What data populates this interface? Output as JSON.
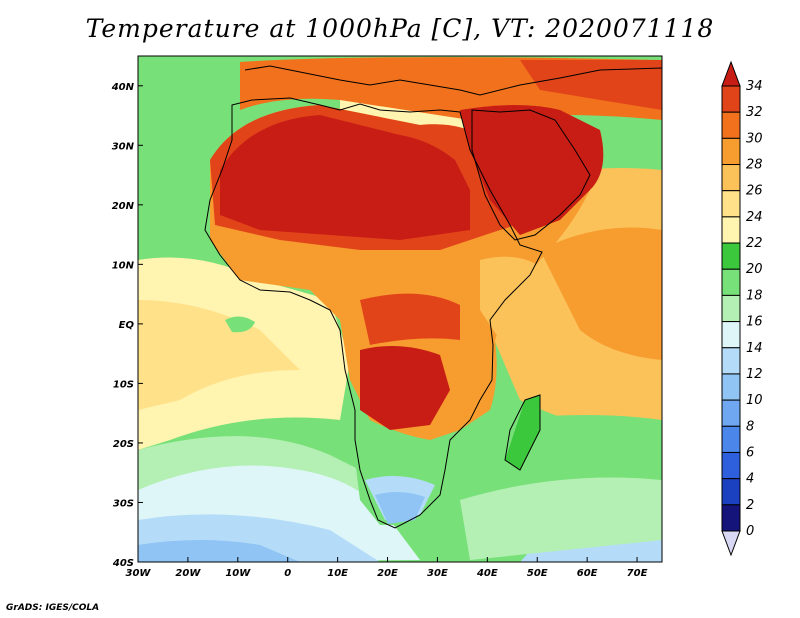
{
  "title": "Temperature at 1000hPa [C], VT: 2020071118",
  "credit": "GrADS: IGES/COLA",
  "map": {
    "lon_range": [
      -30,
      75
    ],
    "lat_range": [
      -40,
      45
    ],
    "lon_ticks": [
      {
        "value": -30,
        "label": "30W"
      },
      {
        "value": -20,
        "label": "20W"
      },
      {
        "value": -10,
        "label": "10W"
      },
      {
        "value": 0,
        "label": "0"
      },
      {
        "value": 10,
        "label": "10E"
      },
      {
        "value": 20,
        "label": "20E"
      },
      {
        "value": 30,
        "label": "30E"
      },
      {
        "value": 40,
        "label": "40E"
      },
      {
        "value": 50,
        "label": "50E"
      },
      {
        "value": 60,
        "label": "60E"
      },
      {
        "value": 70,
        "label": "70E"
      }
    ],
    "lat_ticks": [
      {
        "value": 40,
        "label": "40N"
      },
      {
        "value": 30,
        "label": "30N"
      },
      {
        "value": 20,
        "label": "20N"
      },
      {
        "value": 10,
        "label": "10N"
      },
      {
        "value": 0,
        "label": "EQ"
      },
      {
        "value": -10,
        "label": "10S"
      },
      {
        "value": -20,
        "label": "20S"
      },
      {
        "value": -30,
        "label": "30S"
      },
      {
        "value": -40,
        "label": "40S"
      }
    ]
  },
  "colorbar": {
    "levels": [
      "0",
      "2",
      "4",
      "6",
      "8",
      "10",
      "12",
      "14",
      "16",
      "18",
      "20",
      "22",
      "24",
      "26",
      "28",
      "30",
      "32",
      "34"
    ],
    "colors": [
      "#d8d8f4",
      "#14147a",
      "#1b40c0",
      "#2e5fdc",
      "#4b86ea",
      "#6fa8f0",
      "#8fc4f4",
      "#b4dcf8",
      "#dff6f8",
      "#b4f0b4",
      "#78e078",
      "#3cc83c",
      "#fff4b0",
      "#ffe18a",
      "#fcc25a",
      "#f79c2e",
      "#f2711d",
      "#e2441a",
      "#c81d14"
    ]
  },
  "regions": [
    {
      "name": "ocean-cool-south",
      "color": "#6fa8f0"
    },
    {
      "name": "ocean-mid",
      "color": "#78e078"
    },
    {
      "name": "sahara",
      "color": "#c81d14"
    },
    {
      "name": "indian-ocean",
      "color": "#f79c2e"
    }
  ]
}
